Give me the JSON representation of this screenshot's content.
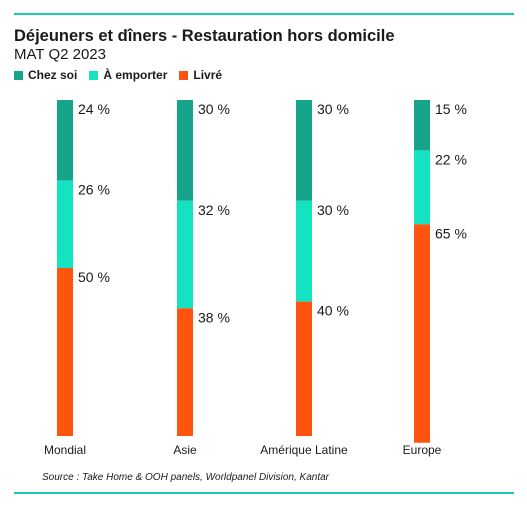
{
  "chart_data": {
    "type": "bar",
    "stacked": true,
    "title": "Déjeuners et dîners - Restauration hors domicile",
    "subtitle": "MAT Q2 2023",
    "categories": [
      "Mondial",
      "Asie",
      "Amérique Latine",
      "Europe"
    ],
    "series": [
      {
        "name": "Chez soi",
        "color": "#16a58b",
        "values": [
          24,
          30,
          30,
          15
        ],
        "labels": [
          "24 %",
          "30 %",
          "30 %",
          "15 %"
        ]
      },
      {
        "name": "À emporter",
        "color": "#14e3c2",
        "values": [
          26,
          32,
          30,
          22
        ],
        "labels": [
          "26 %",
          "32 %",
          "30 %",
          "22 %"
        ]
      },
      {
        "name": "Livré",
        "color": "#ff5410",
        "values": [
          50,
          38,
          40,
          65
        ],
        "labels": [
          "50 %",
          "38 %",
          "40 %",
          "65 %"
        ]
      }
    ],
    "ylim": [
      0,
      100
    ],
    "grid": false,
    "legend_position": "top-left"
  },
  "source": "Source : Take Home & OOH panels, Worldpanel Division, Kantar"
}
